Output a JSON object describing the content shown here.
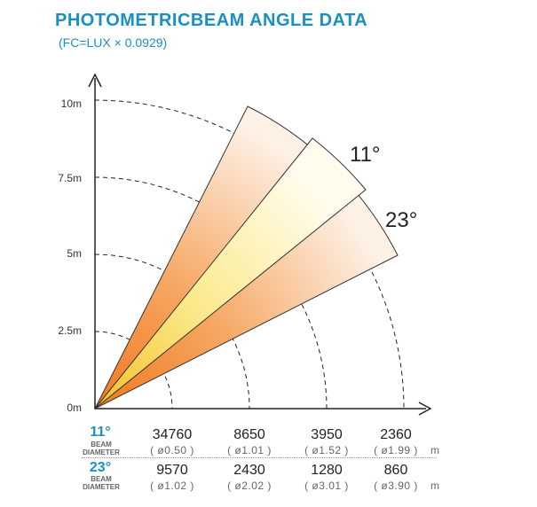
{
  "title": "PHOTOMETRICBEAM ANGLE DATA",
  "subtitle": "(FC=LUX × 0.0929)",
  "y_axis": {
    "ticks": [
      "10m",
      "7.5m",
      "5m",
      "2.5m",
      "0m"
    ]
  },
  "beams": [
    {
      "angle_label": "11°",
      "angle_deg": 11
    },
    {
      "angle_label": "23°",
      "angle_deg": 23
    }
  ],
  "table": {
    "label_line1": "BEAM",
    "label_line2": "DIAMETER",
    "unit": "m",
    "rows": [
      {
        "angle": "11°",
        "lux": [
          "34760",
          "8650",
          "3950",
          "2360"
        ],
        "diameter": [
          "( ø0.50 )",
          "( ø1.01 )",
          "( ø1.52 )",
          "( ø1.99 )"
        ]
      },
      {
        "angle": "23°",
        "lux": [
          "9570",
          "2430",
          "1280",
          "860"
        ],
        "diameter": [
          "( ø1.02 )",
          "( ø2.02 )",
          "( ø3.01 )",
          "( ø3.90 )"
        ]
      }
    ]
  },
  "colors": {
    "accent": "#1a8fc4",
    "beam_outer": "#f39a4a",
    "beam_inner": "#fbe98a"
  }
}
